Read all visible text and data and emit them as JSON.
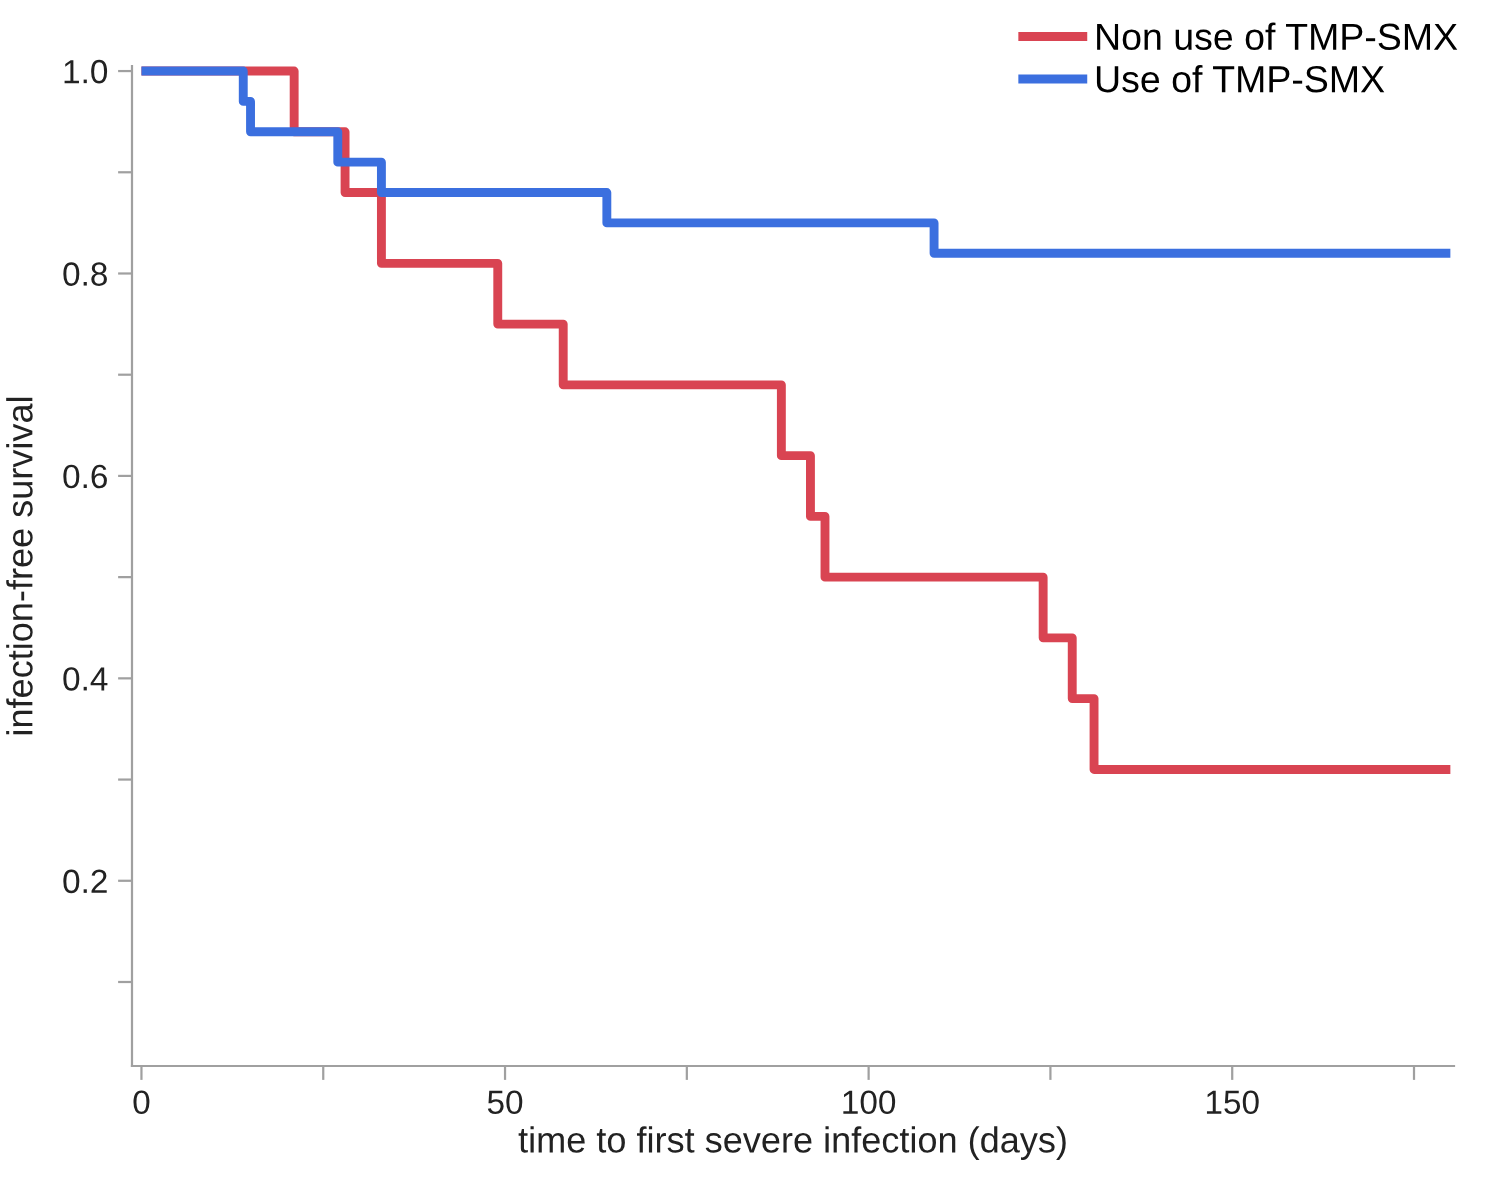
{
  "chart_data": {
    "type": "step",
    "xlabel": "time to first severe infection (days)",
    "ylabel": "infection-free survival",
    "series": [
      {
        "name": "Non use of TMP-SMX",
        "color": "#d94452",
        "x": [
          0,
          21,
          28,
          33,
          49,
          58,
          88,
          92,
          94,
          124,
          128,
          131,
          180
        ],
        "values": [
          1.0,
          0.94,
          0.88,
          0.81,
          0.75,
          0.69,
          0.62,
          0.56,
          0.5,
          0.44,
          0.38,
          0.31,
          0.31
        ]
      },
      {
        "name": "Use of TMP-SMX",
        "color": "#3b6fdf",
        "x": [
          0,
          14,
          15,
          27,
          33,
          64,
          109,
          180
        ],
        "values": [
          1.0,
          0.97,
          0.94,
          0.91,
          0.88,
          0.85,
          0.82,
          0.82
        ]
      }
    ],
    "xlim": [
      -1.3,
      180.5
    ],
    "ylim": [
      0.017,
      1.005
    ],
    "xticks": [
      0,
      {
        "value": 25,
        "label": null
      },
      50,
      {
        "value": 75,
        "label": null
      },
      100,
      {
        "value": 125,
        "label": null
      },
      150,
      {
        "value": 175,
        "label": null
      }
    ],
    "yticks": [
      {
        "value": 0.1,
        "label": null
      },
      0.2,
      {
        "value": 0.3,
        "label": null
      },
      0.4,
      {
        "value": 0.5,
        "label": null
      },
      0.6,
      {
        "value": 0.7,
        "label": null
      },
      0.8,
      {
        "value": 0.9,
        "label": null
      },
      {
        "value": 1.0,
        "label": "1.0"
      }
    ],
    "grid": false,
    "legend": "top right",
    "marker": "none",
    "line_style": "solid"
  }
}
